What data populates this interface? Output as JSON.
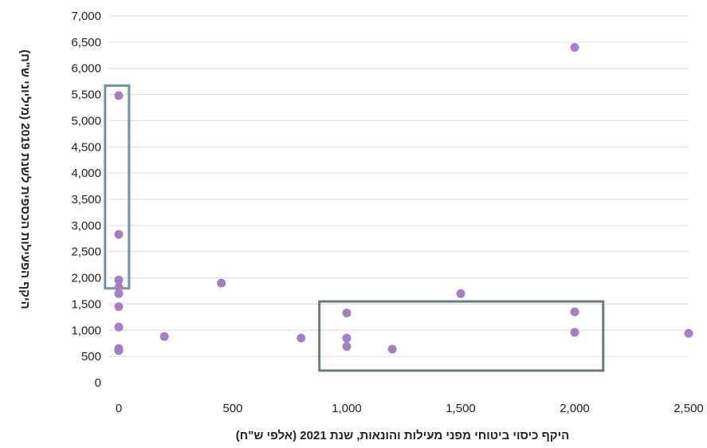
{
  "chart_data": {
    "type": "scatter",
    "title": "",
    "xlabel": "היקף כיסוי ביטוחי מפני מעילות והונאות, שנת 2021 (אלפי ש\"ח)",
    "ylabel": "היקף הפעילות הכספית לשנת 2019 (מיליוני ש\"ח)",
    "xlim": [
      0,
      2500
    ],
    "ylim": [
      0,
      7000
    ],
    "x_ticks": [
      0,
      500,
      1000,
      1500,
      2000,
      2500
    ],
    "y_ticks": [
      0,
      500,
      1000,
      1500,
      2000,
      2500,
      3000,
      3500,
      4000,
      4500,
      5000,
      5500,
      6000,
      6500,
      7000
    ],
    "x_tick_labels": [
      "0",
      "500",
      "1,000",
      "1,500",
      "2,000",
      "2,500"
    ],
    "y_tick_labels": [
      "0",
      "500",
      "1,000",
      "1,500",
      "2,000",
      "2,500",
      "3,000",
      "3,500",
      "4,000",
      "4,500",
      "5,000",
      "5,500",
      "6,000",
      "6,500",
      "7,000"
    ],
    "grid": "horizontal",
    "point_color": "#a47fc4",
    "points": [
      {
        "x": 0,
        "y": 5480
      },
      {
        "x": 0,
        "y": 2830
      },
      {
        "x": 0,
        "y": 1960
      },
      {
        "x": 0,
        "y": 1820
      },
      {
        "x": 0,
        "y": 1700
      },
      {
        "x": 0,
        "y": 1450
      },
      {
        "x": 0,
        "y": 1060
      },
      {
        "x": 0,
        "y": 650
      },
      {
        "x": 0,
        "y": 610
      },
      {
        "x": 200,
        "y": 880
      },
      {
        "x": 450,
        "y": 1900
      },
      {
        "x": 800,
        "y": 850
      },
      {
        "x": 1000,
        "y": 1330
      },
      {
        "x": 1000,
        "y": 850
      },
      {
        "x": 1000,
        "y": 690
      },
      {
        "x": 1200,
        "y": 640
      },
      {
        "x": 1500,
        "y": 1700
      },
      {
        "x": 2000,
        "y": 6400
      },
      {
        "x": 2000,
        "y": 1350
      },
      {
        "x": 2000,
        "y": 960
      },
      {
        "x": 2500,
        "y": 940
      }
    ],
    "highlight_boxes": [
      {
        "x0": -60,
        "x1": 45,
        "y0": 1800,
        "y1": 5670,
        "color": "#6f94a3"
      },
      {
        "x0": 880,
        "x1": 2125,
        "y0": 230,
        "y1": 1550,
        "color": "#6b7a80"
      }
    ]
  }
}
